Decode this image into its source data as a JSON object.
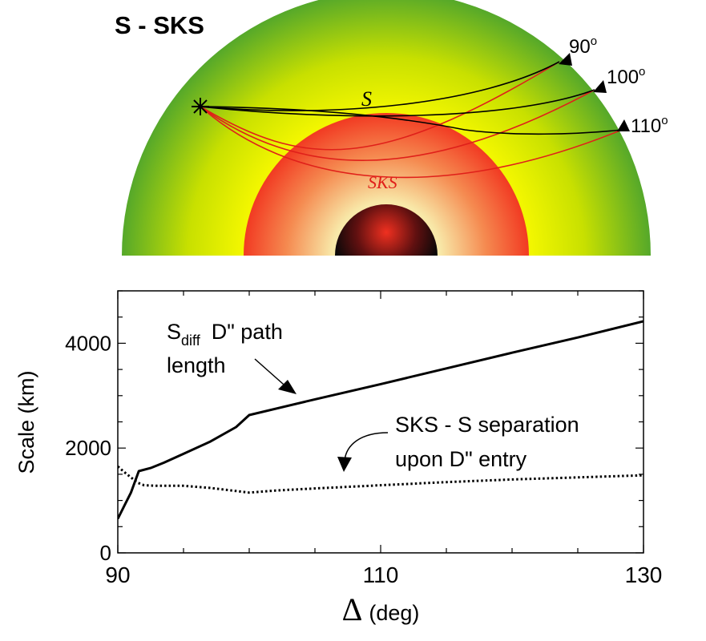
{
  "diagram": {
    "title": "S - SKS",
    "phase_s": "S",
    "phase_sks": "SKS",
    "receivers": [
      {
        "label": "90",
        "sup": "o"
      },
      {
        "label": "100",
        "sup": "o"
      },
      {
        "label": "110",
        "sup": "o"
      }
    ],
    "colors": {
      "mantle_outer": "#55a82a",
      "mantle_inner": "#f2f600",
      "core_outer": "#f23a22",
      "core_inner": "#f8e8a8",
      "inner_core": "#101010",
      "sks_ray": "#e0201a",
      "s_ray": "#000000"
    }
  },
  "chart_data": {
    "type": "line",
    "xlabel_symbol": "Δ",
    "xlabel_unit": "(deg)",
    "ylabel": "Scale (km)",
    "xlim": [
      90,
      130
    ],
    "ylim": [
      0,
      5000
    ],
    "xticks": [
      90,
      110,
      130
    ],
    "yticks": [
      0,
      2000,
      4000
    ],
    "series": [
      {
        "style": "solid",
        "x": [
          90,
          90.5,
          91,
          91.6,
          92.5,
          93.5,
          95,
          97,
          99,
          100,
          105,
          110,
          115,
          120,
          125,
          130
        ],
        "y": [
          650,
          900,
          1150,
          1560,
          1620,
          1720,
          1890,
          2120,
          2400,
          2630,
          2930,
          3220,
          3520,
          3820,
          4110,
          4420
        ]
      },
      {
        "style": "dotted",
        "x": [
          90,
          90.5,
          91,
          91.5,
          92,
          93,
          95,
          97,
          99,
          100,
          102,
          105,
          110,
          115,
          120,
          125,
          130
        ],
        "y": [
          1650,
          1540,
          1440,
          1340,
          1290,
          1280,
          1280,
          1240,
          1180,
          1150,
          1190,
          1230,
          1290,
          1350,
          1400,
          1440,
          1480
        ]
      }
    ],
    "annotations": {
      "sdiff_main": "S",
      "sdiff_sub": "diff",
      "sdiff_rest": "D\" path",
      "sdiff_line2": "length",
      "sep_line1": "SKS - S separation",
      "sep_line2": "upon D\" entry"
    }
  }
}
